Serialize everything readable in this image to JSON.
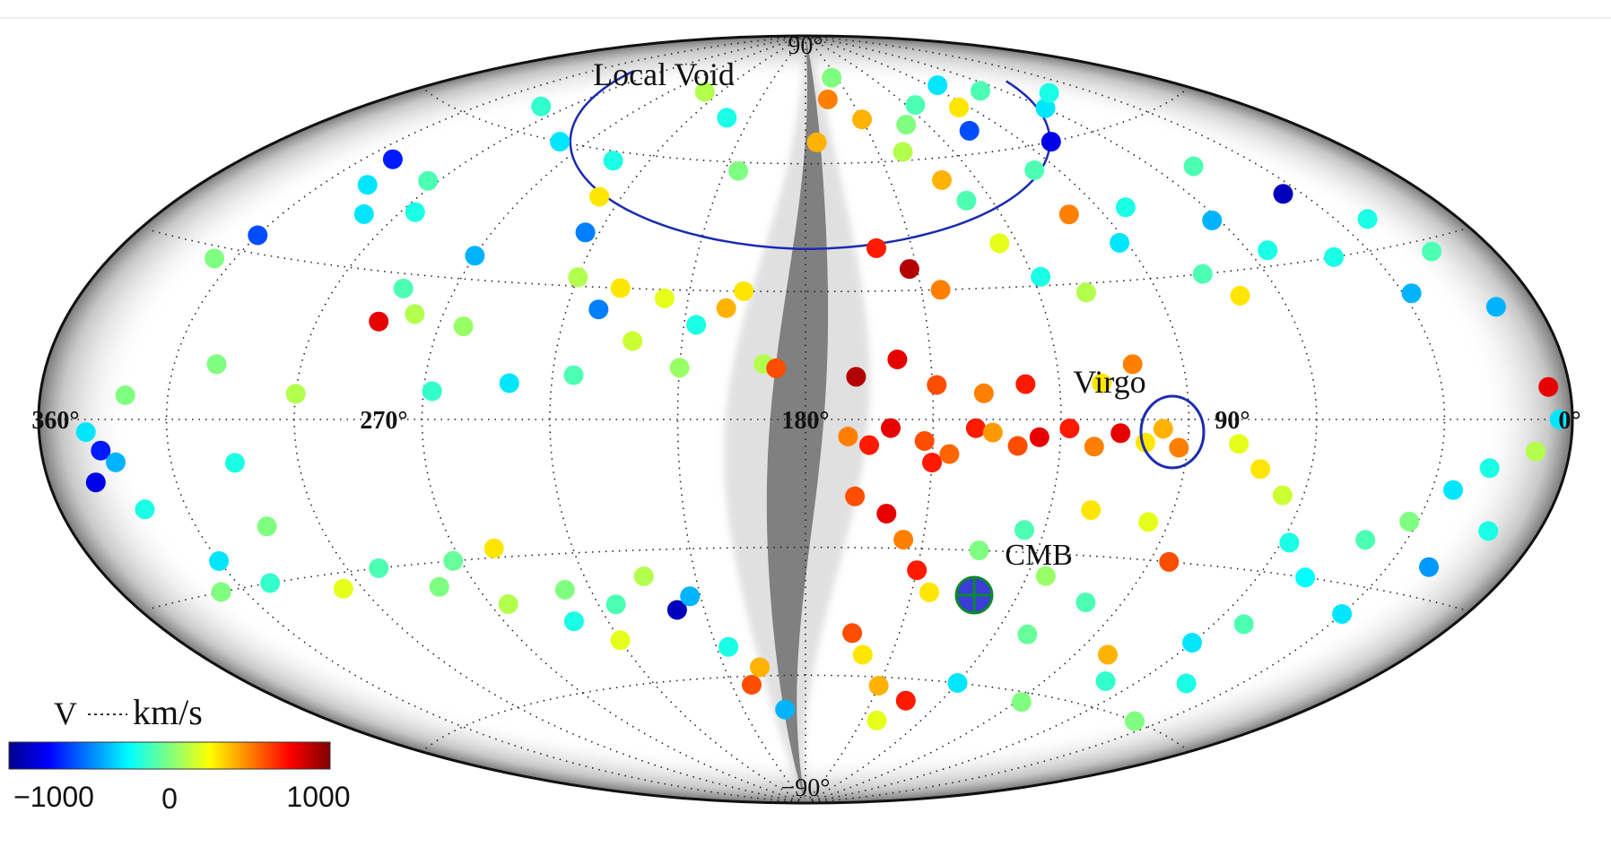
{
  "map": {
    "projection": "Aitoff",
    "longitude_labels": [
      "360°",
      "270°",
      "180°",
      "90°",
      "0°"
    ],
    "latitude_labels": [
      "90°",
      "−90°"
    ],
    "annotations": {
      "local_void": "Local Void",
      "virgo": "Virgo",
      "cmb": "CMB"
    },
    "colors": {
      "boundary": "#111111",
      "void_curve": "#1a2bb0",
      "virgo_circle": "#1a2bb0",
      "cmb_marker": "#0a8a2a",
      "galactic_band": "#7a7a7a"
    }
  },
  "colorbar": {
    "variable": "V",
    "unit": "km/s",
    "ticks": [
      "−1000",
      "0",
      "1000"
    ],
    "range": [
      -1000,
      1000
    ],
    "colormap": [
      "#00008f",
      "#0000ff",
      "#0080ff",
      "#00ffff",
      "#80ff80",
      "#ffff00",
      "#ff8000",
      "#ff0000",
      "#800000"
    ]
  },
  "chart_data": {
    "type": "scatter",
    "title": "",
    "xlabel": "",
    "ylabel": "",
    "coordinate_system": "galactic longitude / latitude (degrees)",
    "color_variable": "V (km/s)",
    "color_range": [
      -1000,
      1000
    ],
    "xlim": [
      360,
      0
    ],
    "ylim": [
      -90,
      90
    ],
    "points": [
      [
        349,
        -2,
        -300
      ],
      [
        346,
        -5,
        -700
      ],
      [
        349,
        -10,
        -800
      ],
      [
        343,
        -7,
        -400
      ],
      [
        340,
        -15,
        -200
      ],
      [
        336,
        -30,
        0
      ],
      [
        330,
        -25,
        -300
      ],
      [
        322,
        -30,
        -150
      ],
      [
        315,
        -8,
        -200
      ],
      [
        313,
        -20,
        0
      ],
      [
        305,
        -33,
        200
      ],
      [
        292,
        -30,
        -100
      ],
      [
        280,
        -35,
        0
      ],
      [
        272,
        -30,
        -50
      ],
      [
        265,
        -40,
        100
      ],
      [
        260,
        -28,
        300
      ],
      [
        250,
        -45,
        -200
      ],
      [
        247,
        -38,
        0
      ],
      [
        240,
        -50,
        200
      ],
      [
        235,
        -42,
        -100
      ],
      [
        224,
        -36,
        100
      ],
      [
        218,
        -44,
        -900
      ],
      [
        213,
        -41,
        -400
      ],
      [
        206,
        -53,
        -200
      ],
      [
        202,
        -62,
        600
      ],
      [
        197,
        -58,
        400
      ],
      [
        190,
        -68,
        -400
      ],
      [
        335,
        28,
        0
      ],
      [
        330,
        33,
        -600
      ],
      [
        322,
        50,
        -700
      ],
      [
        318,
        45,
        -300
      ],
      [
        309,
        40,
        -300
      ],
      [
        303,
        48,
        -100
      ],
      [
        296,
        42,
        -200
      ],
      [
        285,
        20,
        800
      ],
      [
        283,
        27,
        -100
      ],
      [
        277,
        22,
        100
      ],
      [
        270,
        35,
        -400
      ],
      [
        264,
        20,
        50
      ],
      [
        253,
        58,
        -200
      ],
      [
        247,
        50,
        300
      ],
      [
        244,
        42,
        -500
      ],
      [
        240,
        32,
        100
      ],
      [
        232,
        25,
        -500
      ],
      [
        228,
        30,
        300
      ],
      [
        222,
        18,
        150
      ],
      [
        216,
        28,
        200
      ],
      [
        207,
        22,
        -200
      ],
      [
        200,
        26,
        400
      ],
      [
        196,
        30,
        300
      ],
      [
        190,
        13,
        100
      ],
      [
        187,
        12,
        600
      ],
      [
        210,
        12,
        50
      ],
      [
        235,
        10,
        -100
      ],
      [
        250,
        8,
        -300
      ],
      [
        268,
        6,
        -150
      ],
      [
        300,
        5,
        100
      ],
      [
        320,
        10,
        0
      ],
      [
        340,
        4,
        0
      ],
      [
        170,
        -4,
        500
      ],
      [
        165,
        -6,
        700
      ],
      [
        160,
        -2,
        800
      ],
      [
        152,
        -5,
        600
      ],
      [
        150,
        -10,
        700
      ],
      [
        146,
        -8,
        550
      ],
      [
        140,
        -2,
        700
      ],
      [
        136,
        -3,
        450
      ],
      [
        130,
        -6,
        600
      ],
      [
        125,
        -4,
        800
      ],
      [
        118,
        -2,
        700
      ],
      [
        112,
        -6,
        500
      ],
      [
        106,
        -3,
        800
      ],
      [
        100,
        -5,
        300
      ],
      [
        96,
        -2,
        400
      ],
      [
        92,
        -6,
        500
      ],
      [
        168,
        10,
        900
      ],
      [
        158,
        14,
        800
      ],
      [
        149,
        8,
        600
      ],
      [
        138,
        6,
        500
      ],
      [
        128,
        8,
        700
      ],
      [
        110,
        8,
        300
      ],
      [
        102,
        12,
        500
      ],
      [
        168,
        -18,
        600
      ],
      [
        160,
        -22,
        800
      ],
      [
        155,
        -28,
        500
      ],
      [
        150,
        -35,
        700
      ],
      [
        145,
        -40,
        300
      ],
      [
        135,
        -30,
        0
      ],
      [
        125,
        -25,
        -100
      ],
      [
        115,
        -35,
        50
      ],
      [
        110,
        -20,
        300
      ],
      [
        100,
        -40,
        -100
      ],
      [
        95,
        -22,
        200
      ],
      [
        85,
        -30,
        600
      ],
      [
        80,
        -50,
        400
      ],
      [
        165,
        -50,
        600
      ],
      [
        160,
        -55,
        300
      ],
      [
        150,
        -62,
        400
      ],
      [
        142,
        -70,
        200
      ],
      [
        135,
        -65,
        700
      ],
      [
        120,
        -60,
        -300
      ],
      [
        110,
        -48,
        -50
      ],
      [
        160,
        40,
        700
      ],
      [
        152,
        35,
        900
      ],
      [
        145,
        30,
        500
      ],
      [
        132,
        55,
        400
      ],
      [
        128,
        50,
        -100
      ],
      [
        125,
        40,
        200
      ],
      [
        118,
        32,
        -200
      ],
      [
        108,
        28,
        100
      ],
      [
        100,
        45,
        500
      ],
      [
        98,
        55,
        -100
      ],
      [
        92,
        38,
        -300
      ],
      [
        80,
        60,
        -800
      ],
      [
        82,
        45,
        -200
      ],
      [
        76,
        30,
        -100
      ],
      [
        70,
        25,
        300
      ],
      [
        62,
        40,
        -400
      ],
      [
        55,
        33,
        -200
      ],
      [
        48,
        50,
        -100
      ],
      [
        40,
        30,
        -200
      ],
      [
        35,
        42,
        -900
      ],
      [
        28,
        22,
        -400
      ],
      [
        22,
        35,
        -200
      ],
      [
        15,
        28,
        -100
      ],
      [
        10,
        18,
        -400
      ],
      [
        5,
        5,
        800
      ],
      [
        3,
        0,
        -300
      ],
      [
        8,
        -5,
        100
      ],
      [
        18,
        -8,
        -200
      ],
      [
        25,
        -12,
        -300
      ],
      [
        32,
        -18,
        0
      ],
      [
        40,
        -22,
        -100
      ],
      [
        48,
        -30,
        -250
      ],
      [
        58,
        -24,
        -200
      ],
      [
        65,
        -15,
        150
      ],
      [
        72,
        -10,
        300
      ],
      [
        78,
        -5,
        200
      ],
      [
        60,
        -45,
        -300
      ],
      [
        52,
        -40,
        -100
      ],
      [
        45,
        -52,
        -200
      ],
      [
        38,
        -60,
        0
      ],
      [
        30,
        -35,
        -300
      ],
      [
        20,
        -25,
        -450
      ],
      [
        12,
        -18,
        -200
      ],
      [
        70,
        -55,
        -150
      ],
      [
        88,
        -62,
        0
      ],
      [
        150,
        70,
        400
      ],
      [
        140,
        62,
        100
      ],
      [
        130,
        68,
        0
      ],
      [
        115,
        72,
        -100
      ],
      [
        105,
        65,
        -600
      ],
      [
        95,
        70,
        300
      ],
      [
        85,
        75,
        -300
      ],
      [
        70,
        72,
        -100
      ],
      [
        60,
        66,
        -300
      ],
      [
        45,
        68,
        -200
      ],
      [
        250,
        75,
        100
      ],
      [
        222,
        70,
        -200
      ],
      [
        205,
        58,
        0
      ],
      [
        310,
        65,
        -150
      ],
      [
        280,
        60,
        -300
      ],
      [
        175,
        65,
        400
      ],
      [
        165,
        75,
        500
      ],
      [
        155,
        80,
        0
      ]
    ]
  }
}
